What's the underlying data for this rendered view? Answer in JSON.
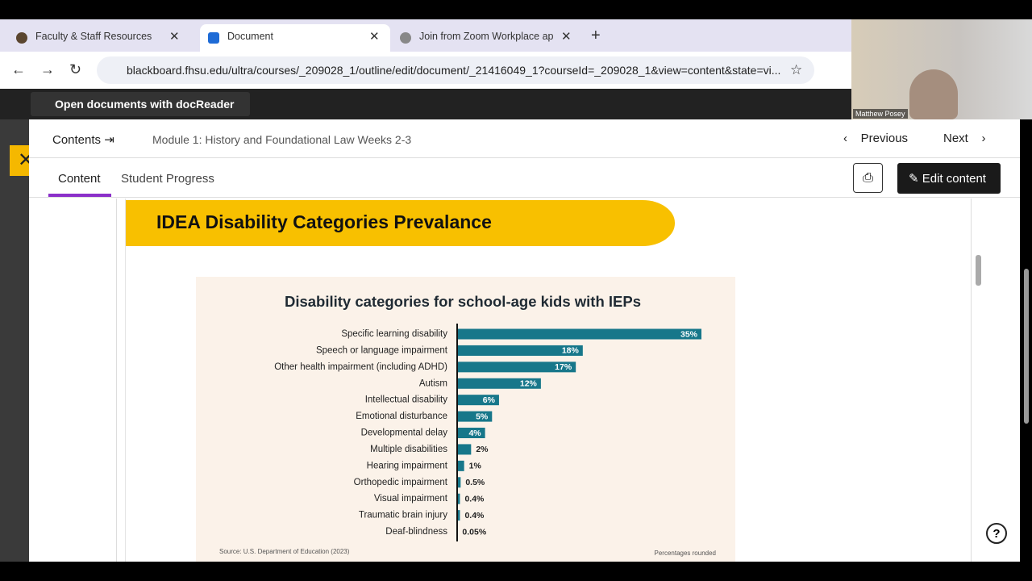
{
  "browser": {
    "tabs": [
      "Faculty & Staff Resources",
      "Document",
      "Join from Zoom Workplace app"
    ],
    "url": "blackboard.fhsu.edu/ultra/courses/_209028_1/outline/edit/document/_21416049_1?courseId=_209028_1&view=content&state=vi..."
  },
  "banner": "Open documents with docReader",
  "webcam": "Matthew Posey",
  "header": {
    "contents": "Contents",
    "breadcrumb": "Module 1: History and Foundational Law Weeks 2-3",
    "previous": "Previous",
    "next": "Next"
  },
  "tabs": [
    "Content",
    "Student Progress"
  ],
  "edit": "Edit content",
  "slide_title": "IDEA Disability Categories Prevalance",
  "chart_data": {
    "type": "bar",
    "orientation": "horizontal",
    "title": "Disability categories for school-age kids with IEPs",
    "categories": [
      "Specific learning disability",
      "Speech or language impairment",
      "Other health impairment (including ADHD)",
      "Autism",
      "Intellectual disability",
      "Emotional disturbance",
      "Developmental delay",
      "Multiple disabilities",
      "Hearing impairment",
      "Orthopedic impairment",
      "Visual impairment",
      "Traumatic brain injury",
      "Deaf-blindness"
    ],
    "values": [
      35,
      18,
      17,
      12,
      6,
      5,
      4,
      2,
      1,
      0.5,
      0.4,
      0.4,
      0.05
    ],
    "value_labels": [
      "35%",
      "18%",
      "17%",
      "12%",
      "6%",
      "5%",
      "4%",
      "2%",
      "1%",
      "0.5%",
      "0.4%",
      "0.4%",
      "0.05%"
    ],
    "color": "#17778a",
    "source": "Source: U.S. Department of Education (2023)",
    "note": "Percentages rounded"
  }
}
